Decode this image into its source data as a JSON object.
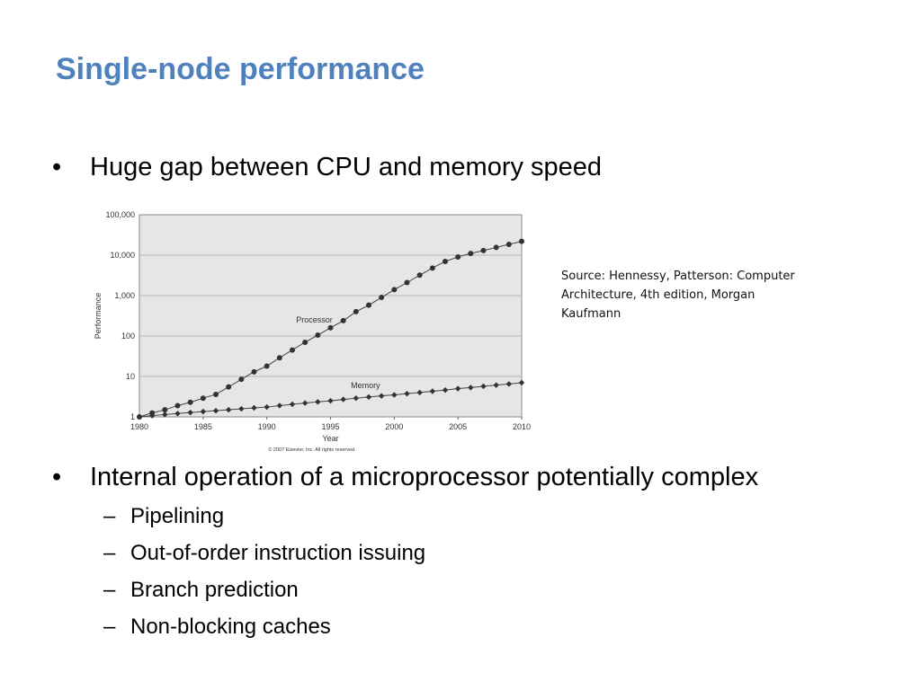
{
  "slide": {
    "title": "Single-node performance",
    "bullets": [
      "Huge gap between CPU and memory speed",
      "Internal operation of a microprocessor potentially complex"
    ],
    "bullet_marker": "•",
    "sub_marker": "–",
    "sub_bullets": [
      "Pipelining",
      "Out-of-order instruction issuing",
      "Branch prediction",
      "Non-blocking caches"
    ],
    "source_note": "Source: Hennessy, Patterson: Computer Architecture, 4th edition, Morgan Kaufmann"
  },
  "chart_data": {
    "type": "line",
    "title": "",
    "xlabel": "Year",
    "ylabel": "Performance",
    "yscale": "log",
    "xlim": [
      1980,
      2010
    ],
    "ylim": [
      1,
      100000
    ],
    "x_ticks": [
      "1980",
      "1985",
      "1990",
      "1995",
      "2000",
      "2005",
      "2010"
    ],
    "y_ticks": [
      "1",
      "10",
      "100",
      "1,000",
      "10,000",
      "100,000"
    ],
    "grid": true,
    "copyright": "© 2007 Elsevier, Inc. All rights reserved.",
    "plot_background": "#e6e6e6",
    "marker_color": "#333333",
    "x": [
      1980,
      1981,
      1982,
      1983,
      1984,
      1985,
      1986,
      1987,
      1988,
      1989,
      1990,
      1991,
      1992,
      1993,
      1994,
      1995,
      1996,
      1997,
      1998,
      1999,
      2000,
      2001,
      2002,
      2003,
      2004,
      2005,
      2006,
      2007,
      2008,
      2009,
      2010
    ],
    "series": [
      {
        "name": "Processor",
        "marker": "circle",
        "values": [
          1,
          1.25,
          1.5,
          1.9,
          2.3,
          2.9,
          3.6,
          5.5,
          8.5,
          13,
          18,
          29,
          45,
          70,
          105,
          160,
          240,
          400,
          580,
          900,
          1400,
          2100,
          3200,
          4800,
          7000,
          9000,
          11000,
          13000,
          15500,
          18500,
          22000
        ]
      },
      {
        "name": "Memory",
        "marker": "diamond",
        "values": [
          1,
          1.07,
          1.14,
          1.21,
          1.28,
          1.35,
          1.42,
          1.5,
          1.58,
          1.67,
          1.75,
          1.9,
          2.05,
          2.2,
          2.35,
          2.5,
          2.7,
          2.9,
          3.1,
          3.3,
          3.5,
          3.75,
          4.0,
          4.3,
          4.6,
          5.0,
          5.3,
          5.7,
          6.1,
          6.5,
          7.0
        ]
      }
    ]
  }
}
